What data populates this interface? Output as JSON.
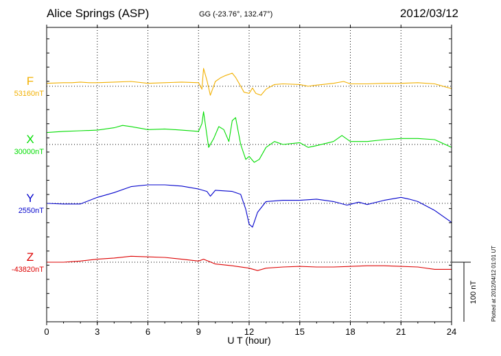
{
  "header": {
    "station": "Alice Springs (ASP)",
    "coords": "GG (-23.76°, 132.47°)",
    "date": "2012/03/12"
  },
  "footer": {
    "plotted_note": "Plotted at 2012/04/12 01:01  UT"
  },
  "chart_data": {
    "type": "line",
    "title": "Alice Springs (ASP)",
    "xlabel": "U T (hour)",
    "xlim": [
      0,
      24
    ],
    "x_ticks": [
      "0",
      "3",
      "6",
      "9",
      "12",
      "15",
      "18",
      "21",
      "24"
    ],
    "grid": true,
    "scale_bar_label": "100 nT",
    "scale_bar_nT": 100,
    "series": [
      {
        "name": "F",
        "baseline_label": "53160nT",
        "color": "#f2b000",
        "x": [
          0,
          1,
          1.5,
          2,
          2.5,
          3,
          4,
          5,
          6,
          7,
          8,
          9,
          9.2,
          9.3,
          9.5,
          9.7,
          10,
          10.3,
          10.6,
          11,
          11.2,
          11.4,
          11.7,
          12,
          12.2,
          12.4,
          12.7,
          13,
          13.5,
          14,
          15,
          15.5,
          16,
          17,
          17.6,
          18,
          19,
          20,
          21,
          22,
          23,
          24
        ],
        "y": [
          5,
          6,
          6,
          7,
          6,
          6,
          7,
          8,
          5,
          6,
          7,
          6,
          -5,
          30,
          10,
          -15,
          8,
          14,
          18,
          22,
          15,
          5,
          -10,
          -12,
          -3,
          -12,
          -15,
          -5,
          3,
          4,
          3,
          0,
          2,
          5,
          8,
          4,
          4,
          5,
          5,
          6,
          4,
          -4
        ]
      },
      {
        "name": "X",
        "baseline_label": "30000nT",
        "color": "#00dd00",
        "x": [
          0,
          1,
          2,
          3,
          4,
          4.5,
          5,
          6,
          7,
          8,
          9,
          9.2,
          9.3,
          9.6,
          9.9,
          10.2,
          10.5,
          10.8,
          11,
          11.2,
          11.5,
          11.8,
          12,
          12.3,
          12.6,
          13,
          13.5,
          14,
          15,
          15.5,
          16,
          17,
          17.5,
          18,
          19,
          20,
          21,
          22,
          23,
          24
        ],
        "y": [
          20,
          22,
          23,
          24,
          28,
          32,
          30,
          25,
          26,
          24,
          22,
          35,
          55,
          -5,
          10,
          30,
          25,
          5,
          40,
          45,
          0,
          -25,
          -20,
          -30,
          -25,
          -5,
          5,
          0,
          3,
          -5,
          -2,
          5,
          15,
          5,
          5,
          8,
          10,
          10,
          8,
          -5
        ]
      },
      {
        "name": "Y",
        "baseline_label": "2550nT",
        "color": "#0000cc",
        "x": [
          0,
          1,
          2,
          3,
          4,
          5,
          6,
          7,
          8,
          9,
          9.5,
          9.7,
          10,
          11,
          11.5,
          11.8,
          12,
          12.2,
          12.5,
          13,
          14,
          15,
          16,
          17,
          17.8,
          18.5,
          19,
          20,
          21,
          21.5,
          22,
          23,
          24
        ],
        "y": [
          0,
          -1,
          -1,
          10,
          18,
          28,
          31,
          31,
          29,
          24,
          20,
          12,
          22,
          20,
          15,
          -10,
          -35,
          -40,
          -15,
          3,
          5,
          5,
          7,
          3,
          -3,
          2,
          -2,
          5,
          10,
          7,
          3,
          -12,
          -32
        ]
      },
      {
        "name": "Z",
        "baseline_label": "-43820nT",
        "color": "#dd0000",
        "x": [
          0,
          1,
          2,
          3,
          4,
          5,
          6,
          7,
          8,
          9,
          9.3,
          10,
          11,
          12,
          12.5,
          13,
          14,
          15,
          16,
          17,
          18,
          19,
          20,
          21,
          22,
          23,
          24
        ],
        "y": [
          0,
          0,
          2,
          5,
          7,
          10,
          9,
          8,
          5,
          2,
          5,
          -3,
          -6,
          -10,
          -14,
          -10,
          -8,
          -7,
          -8,
          -8,
          -7,
          -6,
          -6,
          -7,
          -8,
          -12,
          -12
        ]
      }
    ]
  }
}
